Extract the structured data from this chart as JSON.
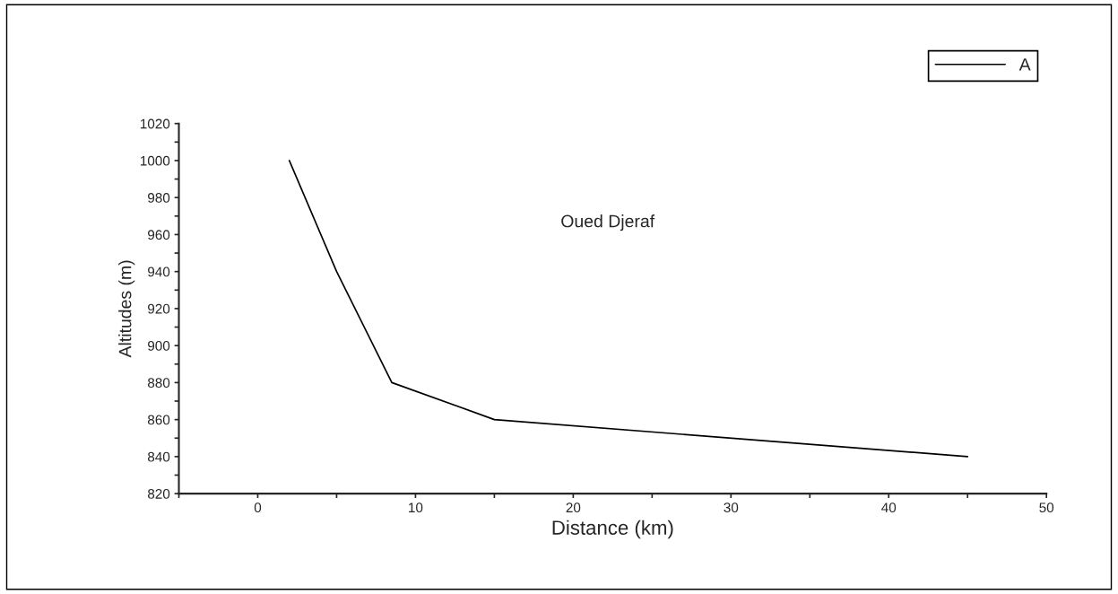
{
  "chart_data": {
    "type": "line",
    "xlabel": "Distance (km)",
    "ylabel": "Altitudes (m)",
    "x": [
      2,
      5,
      8.5,
      15,
      45
    ],
    "series": [
      {
        "name": "A",
        "color": "#000000",
        "values": [
          1000,
          940,
          880,
          860,
          840
        ]
      }
    ],
    "xlim": [
      -5,
      50
    ],
    "xticks": [
      {
        "value": -5,
        "label": null
      },
      0,
      {
        "value": 5,
        "label": null
      },
      10,
      {
        "value": 15,
        "label": null
      },
      20,
      {
        "value": 25,
        "label": null
      },
      30,
      {
        "value": 35,
        "label": null
      },
      40,
      {
        "value": 45,
        "label": null
      },
      50
    ],
    "ylim": [
      820,
      1020
    ],
    "yticks": [
      820,
      {
        "value": 830,
        "label": null
      },
      840,
      {
        "value": 850,
        "label": null
      },
      860,
      {
        "value": 870,
        "label": null
      },
      880,
      {
        "value": 890,
        "label": null
      },
      900,
      {
        "value": 910,
        "label": null
      },
      920,
      {
        "value": 930,
        "label": null
      },
      940,
      {
        "value": 950,
        "label": null
      },
      960,
      {
        "value": 970,
        "label": null
      },
      980,
      {
        "value": 990,
        "label": null
      },
      1000,
      {
        "value": 1010,
        "label": null
      },
      1020
    ],
    "annotations": [
      "Oued Djeraf"
    ],
    "grid": false,
    "legend": "top right",
    "marker": "none",
    "line_style": "solid"
  }
}
